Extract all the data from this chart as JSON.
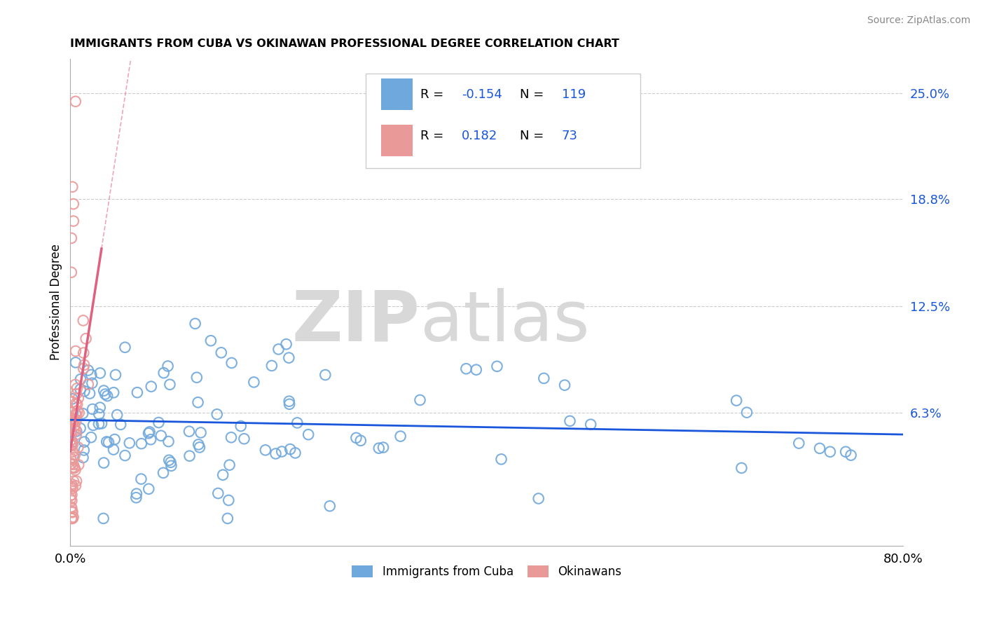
{
  "title": "IMMIGRANTS FROM CUBA VS OKINAWAN PROFESSIONAL DEGREE CORRELATION CHART",
  "source": "Source: ZipAtlas.com",
  "ylabel": "Professional Degree",
  "xmin": 0.0,
  "xmax": 0.8,
  "ymin": -0.015,
  "ymax": 0.27,
  "ytick_vals": [
    0.0,
    0.063,
    0.125,
    0.188,
    0.25
  ],
  "ytick_labels": [
    "",
    "6.3%",
    "12.5%",
    "18.8%",
    "25.0%"
  ],
  "xtick_vals": [
    0.0,
    0.8
  ],
  "xtick_labels": [
    "0.0%",
    "80.0%"
  ],
  "blue_color": "#6fa8dc",
  "pink_color": "#ea9999",
  "blue_line_color": "#1a56db",
  "pink_line_color": "#e06080",
  "blue_r": "-0.154",
  "blue_n": "119",
  "pink_r": "0.182",
  "pink_n": "73",
  "watermark_zip": "ZIP",
  "watermark_atlas": "atlas",
  "legend_label_blue": "Immigrants from Cuba",
  "legend_label_pink": "Okinawans",
  "background_color": "#ffffff",
  "grid_color": "#cccccc"
}
